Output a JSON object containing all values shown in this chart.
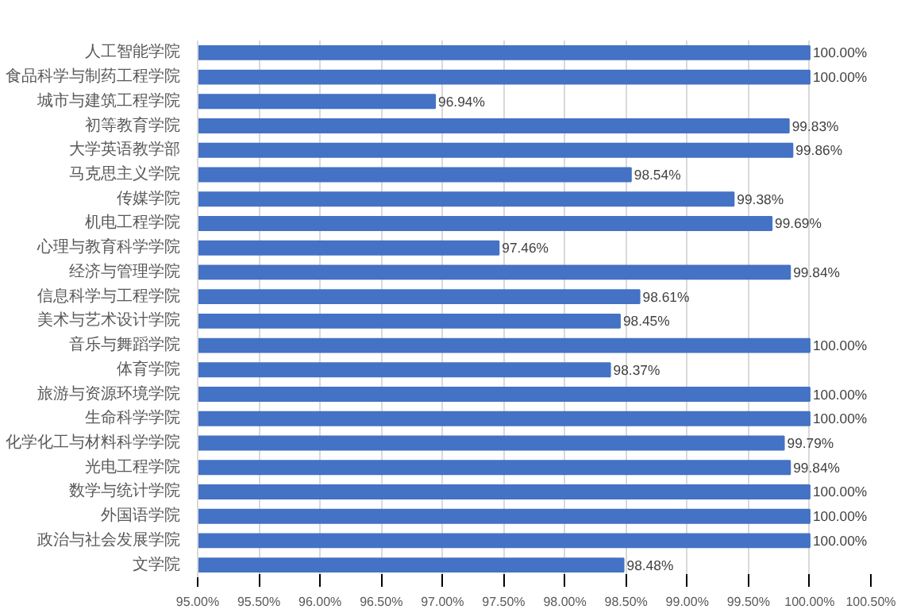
{
  "chart_data": {
    "type": "bar",
    "orientation": "horizontal",
    "categories": [
      "人工智能学院",
      "食品科学与制药工程学院",
      "城市与建筑工程学院",
      "初等教育学院",
      "大学英语教学部",
      "马克思主义学院",
      "传媒学院",
      "机电工程学院",
      "心理与教育科学学院",
      "经济与管理学院",
      "信息科学与工程学院",
      "美术与艺术设计学院",
      "音乐与舞蹈学院",
      "体育学院",
      "旅游与资源环境学院",
      "生命科学学院",
      "化学化工与材料科学学院",
      "光电工程学院",
      "数学与统计学院",
      "外国语学院",
      "政治与社会发展学院",
      "文学院"
    ],
    "values": [
      100,
      100,
      96.94,
      99.83,
      99.86,
      98.54,
      99.38,
      99.69,
      97.46,
      99.84,
      98.61,
      98.45,
      100,
      98.37,
      100,
      100,
      99.79,
      99.84,
      100,
      100,
      100,
      98.48
    ],
    "value_labels": [
      "100.00%",
      "100.00%",
      "96.94%",
      "99.83%",
      "99.86%",
      "98.54%",
      "99.38%",
      "99.69%",
      "97.46%",
      "99.84%",
      "98.61%",
      "98.45%",
      "100.00%",
      "98.37%",
      "100.00%",
      "100.00%",
      "99.79%",
      "99.84%",
      "100.00%",
      "100.00%",
      "100.00%",
      "98.48%"
    ],
    "color": "#4472c4",
    "xlim": [
      95,
      100.5
    ],
    "xticks": [
      {
        "value": 95,
        "label": "95.00%"
      },
      {
        "value": 95.5,
        "label": "95.50%"
      },
      {
        "value": 96,
        "label": "96.00%"
      },
      {
        "value": 96.5,
        "label": "96.50%"
      },
      {
        "value": 97,
        "label": "97.00%"
      },
      {
        "value": 97.5,
        "label": "97.50%"
      },
      {
        "value": 98,
        "label": "98.00%"
      },
      {
        "value": 98.5,
        "label": "98.50%"
      },
      {
        "value": 99,
        "label": "99.00%"
      },
      {
        "value": 99.5,
        "label": "99.50%"
      },
      {
        "value": 100,
        "label": "100.00%"
      },
      {
        "value": 100.5,
        "label": "100.50%"
      }
    ],
    "grid": "x"
  }
}
